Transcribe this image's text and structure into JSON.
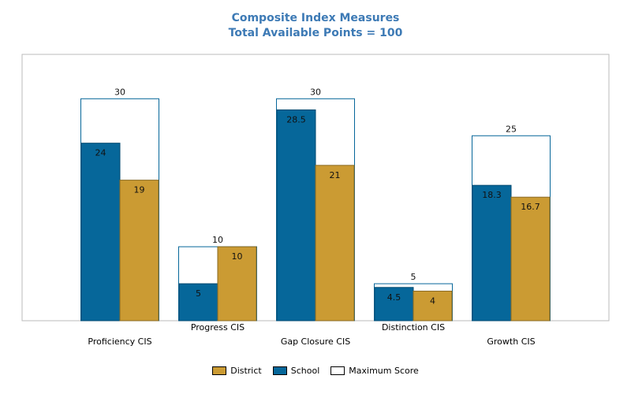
{
  "chart_data": {
    "type": "bar",
    "title": "Composite Index Measures",
    "subtitle": "Total Available Points = 100",
    "categories": [
      "Proficiency CIS",
      "Progress CIS",
      "Gap Closure CIS",
      "Distinction CIS",
      "Growth CIS"
    ],
    "series": [
      {
        "name": "School",
        "values": [
          24,
          5,
          28.5,
          4.5,
          18.3
        ],
        "value_labels": [
          "24",
          "5",
          "28.5",
          "4.5",
          "18.3"
        ],
        "color": "#06679a"
      },
      {
        "name": "District",
        "values": [
          19,
          10,
          21,
          4,
          16.7
        ],
        "value_labels": [
          "19",
          "10",
          "21",
          "4",
          "16.7"
        ],
        "color": "#cb9b33"
      },
      {
        "name": "Maximum Score",
        "values": [
          30,
          10,
          30,
          5,
          25
        ],
        "value_labels": [
          "30",
          "10",
          "30",
          "5",
          "25"
        ],
        "color": "#ffffff"
      }
    ],
    "legend_order": [
      "District",
      "School",
      "Maximum Score"
    ],
    "legend_position": "bottom",
    "ylim": [
      0,
      36
    ],
    "grid": false,
    "xlabel": "",
    "ylabel": ""
  }
}
